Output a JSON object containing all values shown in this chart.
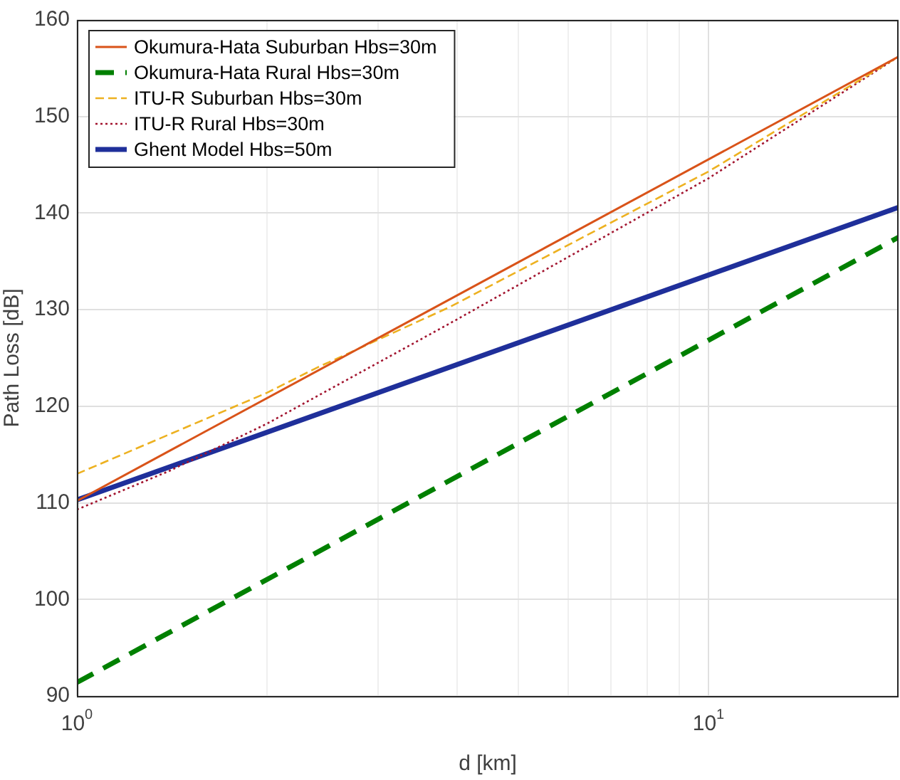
{
  "chart_data": {
    "type": "line",
    "xlabel": "d [km]",
    "ylabel": "Path Loss [dB]",
    "log": "x",
    "xlim": [
      1,
      20
    ],
    "ylim": [
      90,
      160
    ],
    "xticks": [
      {
        "value": 1,
        "label": "10$^{0}$"
      },
      {
        "value": 2,
        "label": null
      },
      {
        "value": 3,
        "label": null
      },
      {
        "value": 4,
        "label": null
      },
      {
        "value": 5,
        "label": null
      },
      {
        "value": 6,
        "label": null
      },
      {
        "value": 7,
        "label": null
      },
      {
        "value": 8,
        "label": null
      },
      {
        "value": 9,
        "label": null
      },
      {
        "value": 10,
        "label": "10$^{1}$"
      }
    ],
    "yticks": [
      90,
      100,
      110,
      120,
      130,
      140,
      150,
      160
    ],
    "grid": true,
    "legend": "top left",
    "marker": "none",
    "series": [
      {
        "name": "Okumura-Hata Suburban Hbs=30m",
        "color": "#d95319",
        "line_style": "solid",
        "x": [
          1,
          20
        ],
        "values": [
          110.2,
          156.2
        ]
      },
      {
        "name": "Okumura-Hata Rural Hbs=30m",
        "color": "#008000",
        "line_style": "dashed",
        "x": [
          1,
          20
        ],
        "values": [
          91.4,
          137.5
        ]
      },
      {
        "name": "ITU-R Suburban Hbs=30m",
        "color": "#edb120",
        "line_style": "dashed",
        "x": [
          1,
          2,
          2.4,
          3.9,
          10,
          20
        ],
        "values": [
          113,
          121.4,
          124,
          130.3,
          144.3,
          156.2
        ]
      },
      {
        "name": "ITU-R Rural Hbs=30m",
        "color": "#a2142f",
        "line_style": "dotted",
        "x": [
          1,
          1.4,
          2,
          3.9,
          10,
          20
        ],
        "values": [
          109.3,
          113.3,
          118.2,
          128.6,
          143.6,
          156.2
        ]
      },
      {
        "name": "Ghent Model Hbs=50m",
        "color": "#1f2f9a",
        "line_style": "solid",
        "x": [
          1,
          20
        ],
        "values": [
          110.3,
          140.6
        ]
      }
    ]
  }
}
